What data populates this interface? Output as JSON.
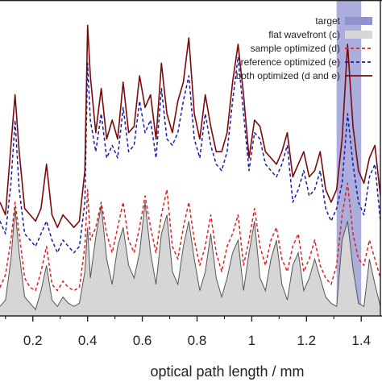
{
  "chart_data": {
    "type": "line",
    "xlabel": "optical path length / mm",
    "ylabel": "",
    "title": "",
    "xlim": [
      0.08,
      1.47
    ],
    "ylim": [
      0,
      10
    ],
    "xticks": [
      0.2,
      0.4,
      0.6,
      0.8,
      1.0,
      1.2,
      1.4
    ],
    "xtick_labels": [
      "0.2",
      "0.4",
      "0.6",
      "0.8",
      "1",
      "1.2",
      "1.4"
    ],
    "legend_position": "top-right",
    "target_region": {
      "name": "target",
      "x": [
        1.31,
        1.4
      ],
      "color": "#8f92d1"
    },
    "series": [
      {
        "name": "flat wavefront (c)",
        "style": "filled",
        "color": "#555555",
        "fill": "#d6d6d6",
        "x": [
          0.08,
          0.1,
          0.12,
          0.135,
          0.15,
          0.17,
          0.19,
          0.21,
          0.23,
          0.25,
          0.27,
          0.29,
          0.31,
          0.33,
          0.35,
          0.37,
          0.39,
          0.4,
          0.41,
          0.43,
          0.45,
          0.47,
          0.49,
          0.51,
          0.53,
          0.55,
          0.57,
          0.59,
          0.61,
          0.63,
          0.65,
          0.67,
          0.69,
          0.71,
          0.73,
          0.75,
          0.77,
          0.79,
          0.81,
          0.83,
          0.85,
          0.87,
          0.89,
          0.91,
          0.93,
          0.95,
          0.97,
          0.99,
          1.01,
          1.03,
          1.05,
          1.07,
          1.09,
          1.11,
          1.13,
          1.15,
          1.17,
          1.19,
          1.21,
          1.23,
          1.25,
          1.27,
          1.29,
          1.31,
          1.33,
          1.35,
          1.37,
          1.39,
          1.41,
          1.43,
          1.45,
          1.47
        ],
        "y": [
          0.3,
          0.5,
          1.8,
          3.4,
          2.0,
          0.6,
          0.4,
          0.2,
          0.8,
          1.6,
          0.5,
          0.3,
          0.6,
          0.4,
          0.3,
          0.4,
          1.4,
          2.8,
          1.2,
          2.5,
          3.5,
          1.8,
          1.0,
          2.2,
          2.8,
          1.6,
          1.2,
          2.0,
          3.6,
          2.0,
          1.0,
          2.6,
          3.2,
          1.4,
          1.0,
          2.2,
          3.0,
          1.8,
          0.8,
          1.4,
          2.6,
          1.2,
          0.6,
          1.2,
          2.0,
          2.4,
          0.8,
          2.0,
          3.0,
          1.2,
          0.8,
          1.8,
          2.4,
          1.0,
          0.5,
          1.6,
          2.0,
          0.8,
          1.2,
          1.8,
          1.2,
          0.6,
          0.4,
          0.3,
          2.4,
          3.0,
          1.5,
          0.4,
          0.3,
          1.8,
          1.0,
          0.3
        ]
      },
      {
        "name": "sample optimized (d)",
        "style": "dashed",
        "color": "#e02020",
        "x": [
          0.08,
          0.1,
          0.12,
          0.135,
          0.15,
          0.17,
          0.19,
          0.21,
          0.23,
          0.25,
          0.27,
          0.29,
          0.31,
          0.33,
          0.35,
          0.37,
          0.39,
          0.4,
          0.41,
          0.43,
          0.45,
          0.47,
          0.49,
          0.51,
          0.53,
          0.55,
          0.57,
          0.59,
          0.61,
          0.63,
          0.65,
          0.67,
          0.69,
          0.71,
          0.73,
          0.75,
          0.77,
          0.79,
          0.81,
          0.83,
          0.85,
          0.87,
          0.89,
          0.91,
          0.93,
          0.95,
          0.97,
          0.99,
          1.01,
          1.03,
          1.05,
          1.07,
          1.09,
          1.11,
          1.13,
          1.15,
          1.17,
          1.19,
          1.21,
          1.23,
          1.25,
          1.27,
          1.29,
          1.31,
          1.33,
          1.35,
          1.37,
          1.39,
          1.41,
          1.43,
          1.45,
          1.47
        ],
        "y": [
          0.9,
          1.3,
          2.4,
          3.6,
          2.6,
          1.2,
          0.9,
          0.8,
          1.4,
          2.2,
          1.0,
          0.8,
          1.1,
          0.9,
          0.8,
          0.9,
          2.2,
          4.0,
          2.4,
          2.8,
          3.6,
          2.6,
          2.0,
          2.8,
          3.6,
          2.4,
          2.0,
          2.8,
          3.8,
          2.8,
          2.0,
          3.2,
          4.0,
          2.2,
          1.8,
          2.8,
          3.6,
          2.4,
          1.6,
          2.2,
          3.2,
          2.0,
          1.4,
          2.2,
          2.6,
          3.2,
          1.6,
          2.4,
          3.4,
          2.2,
          1.6,
          2.4,
          2.8,
          1.8,
          1.4,
          2.2,
          2.6,
          1.4,
          1.8,
          2.4,
          1.6,
          1.2,
          1.0,
          1.6,
          3.2,
          4.2,
          2.6,
          1.8,
          1.6,
          2.4,
          1.8,
          1.2
        ]
      },
      {
        "name": "reference optimized (e)",
        "style": "dashed",
        "color": "#1a1aa6",
        "x": [
          0.08,
          0.1,
          0.12,
          0.135,
          0.15,
          0.17,
          0.19,
          0.21,
          0.23,
          0.25,
          0.27,
          0.29,
          0.31,
          0.33,
          0.35,
          0.37,
          0.39,
          0.4,
          0.41,
          0.43,
          0.45,
          0.47,
          0.49,
          0.51,
          0.53,
          0.55,
          0.57,
          0.59,
          0.61,
          0.63,
          0.65,
          0.67,
          0.69,
          0.71,
          0.73,
          0.75,
          0.77,
          0.79,
          0.81,
          0.83,
          0.85,
          0.87,
          0.89,
          0.91,
          0.93,
          0.95,
          0.97,
          0.99,
          1.01,
          1.03,
          1.05,
          1.07,
          1.09,
          1.11,
          1.13,
          1.15,
          1.17,
          1.19,
          1.21,
          1.23,
          1.25,
          1.27,
          1.29,
          1.31,
          1.33,
          1.35,
          1.37,
          1.39,
          1.41,
          1.43,
          1.45,
          1.47
        ],
        "y": [
          3.0,
          2.6,
          4.2,
          6.2,
          4.0,
          2.6,
          2.4,
          2.2,
          2.6,
          3.0,
          2.4,
          2.0,
          2.4,
          2.2,
          2.0,
          2.2,
          3.6,
          8.0,
          6.2,
          5.2,
          6.4,
          5.0,
          5.4,
          5.0,
          6.6,
          5.2,
          5.4,
          6.8,
          5.8,
          6.2,
          5.0,
          7.2,
          5.6,
          5.4,
          5.8,
          6.8,
          7.6,
          5.6,
          5.0,
          6.4,
          5.4,
          4.8,
          4.6,
          5.2,
          6.8,
          8.2,
          6.4,
          4.6,
          5.8,
          5.6,
          4.8,
          4.6,
          4.4,
          4.8,
          5.4,
          3.6,
          4.0,
          4.6,
          3.8,
          4.0,
          4.6,
          3.4,
          3.0,
          3.4,
          4.2,
          6.4,
          4.8,
          3.6,
          3.2,
          4.4,
          4.8,
          3.0
        ]
      },
      {
        "name": "both optimized (d and e)",
        "style": "solid",
        "color": "#7a0a0a",
        "x": [
          0.08,
          0.1,
          0.12,
          0.135,
          0.15,
          0.17,
          0.19,
          0.21,
          0.23,
          0.25,
          0.27,
          0.29,
          0.31,
          0.33,
          0.35,
          0.37,
          0.39,
          0.4,
          0.41,
          0.43,
          0.45,
          0.47,
          0.49,
          0.51,
          0.53,
          0.55,
          0.57,
          0.59,
          0.61,
          0.63,
          0.65,
          0.67,
          0.69,
          0.71,
          0.73,
          0.75,
          0.77,
          0.79,
          0.81,
          0.83,
          0.85,
          0.87,
          0.89,
          0.91,
          0.93,
          0.95,
          0.97,
          0.99,
          1.01,
          1.03,
          1.05,
          1.07,
          1.09,
          1.11,
          1.13,
          1.15,
          1.17,
          1.19,
          1.21,
          1.23,
          1.25,
          1.27,
          1.29,
          1.31,
          1.33,
          1.35,
          1.37,
          1.39,
          1.41,
          1.43,
          1.45,
          1.47
        ],
        "y": [
          3.6,
          3.2,
          5.4,
          7.0,
          5.2,
          3.4,
          3.2,
          3.0,
          3.4,
          4.8,
          3.2,
          2.8,
          3.2,
          3.0,
          2.8,
          3.0,
          4.6,
          9.2,
          7.6,
          5.8,
          7.2,
          5.6,
          6.2,
          5.6,
          7.4,
          5.8,
          6.0,
          7.6,
          6.6,
          7.0,
          5.6,
          8.0,
          6.4,
          5.8,
          6.8,
          7.4,
          8.8,
          6.4,
          5.6,
          7.0,
          6.0,
          5.2,
          5.2,
          5.8,
          7.4,
          8.6,
          7.0,
          5.0,
          6.2,
          6.0,
          5.2,
          5.0,
          4.8,
          5.2,
          5.8,
          4.4,
          4.8,
          5.2,
          4.4,
          4.6,
          5.2,
          4.0,
          3.6,
          4.0,
          5.6,
          8.6,
          6.0,
          4.6,
          4.2,
          5.0,
          5.4,
          3.8
        ]
      }
    ]
  }
}
